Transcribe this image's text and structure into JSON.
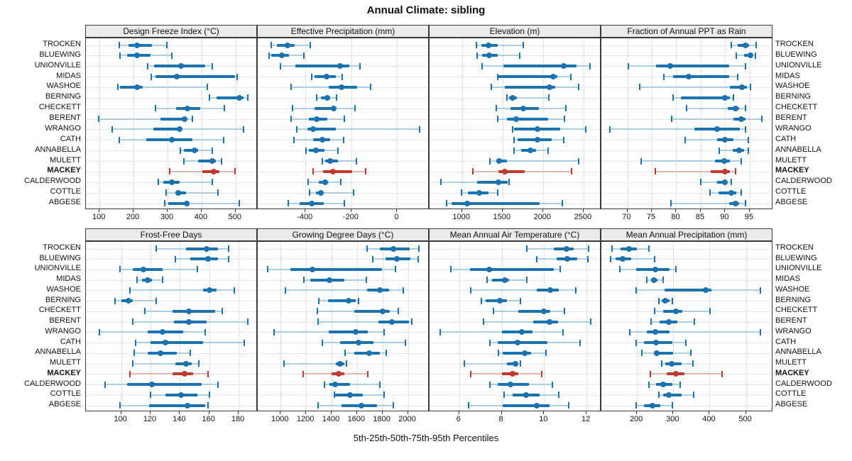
{
  "title": "Annual Climate: sibling",
  "xlabel": "5th-25th-50th-75th-95th Percentiles",
  "stations": [
    "TROCKEN",
    "BLUEWING",
    "UNIONVILLE",
    "MIDAS",
    "WASHOE",
    "BERNING",
    "CHECKETT",
    "BERENT",
    "WRANGO",
    "CATH",
    "ANNABELLA",
    "MULETT",
    "MACKEY",
    "CALDERWOOD",
    "COTTLE",
    "ABGESE"
  ],
  "highlight_station": "MACKEY",
  "percentiles": [
    5,
    25,
    50,
    75,
    95
  ],
  "colors": {
    "blue": "#1a72b0",
    "blue_light": "#9fc8e0",
    "red": "#c03a2f",
    "red_light": "#e4aea7",
    "grid": "#c9c9c9",
    "strip_bg": "#ebebeb",
    "border": "#3a3a3a"
  },
  "chart_data": [
    {
      "type": "dot-interval",
      "slug": "design-freeze-index",
      "row": 0,
      "col": 0,
      "title": "Design Freeze Index (°C)",
      "xticks": [
        100,
        200,
        300,
        400,
        500
      ],
      "xlim": [
        60,
        565
      ],
      "values": [
        [
          158,
          185,
          210,
          255,
          298
        ],
        [
          160,
          180,
          210,
          250,
          313
        ],
        [
          242,
          260,
          339,
          410,
          431
        ],
        [
          253,
          265,
          327,
          498,
          505
        ],
        [
          153,
          160,
          210,
          228,
          417
        ],
        [
          423,
          445,
          511,
          523,
          535
        ],
        [
          265,
          325,
          358,
          397,
          467
        ],
        [
          97,
          280,
          350,
          354,
          373
        ],
        [
          137,
          258,
          336,
          342,
          523
        ],
        [
          159,
          238,
          312,
          372,
          465
        ],
        [
          338,
          348,
          379,
          390,
          431
        ],
        [
          348,
          390,
          431,
          442,
          459
        ],
        [
          306,
          403,
          436,
          452,
          499
        ],
        [
          272,
          287,
          313,
          335,
          431
        ],
        [
          296,
          327,
          331,
          355,
          449
        ],
        [
          292,
          303,
          356,
          362,
          511
        ]
      ]
    },
    {
      "type": "dot-interval",
      "slug": "effective-precipitation",
      "row": 0,
      "col": 1,
      "title": "Effective Precipitation (mm)",
      "xticks": [
        -400,
        -200,
        0
      ],
      "xlim": [
        -608,
        141
      ],
      "values": [
        [
          -549,
          -523,
          -477,
          -446,
          -378
        ],
        [
          -557,
          -549,
          -503,
          -472,
          -407
        ],
        [
          -509,
          -444,
          -250,
          -210,
          -161
        ],
        [
          -374,
          -359,
          -307,
          -269,
          -239
        ],
        [
          -461,
          -298,
          -244,
          -174,
          -115
        ],
        [
          -352,
          -333,
          -304,
          -293,
          -264
        ],
        [
          -457,
          -360,
          -278,
          -272,
          -184
        ],
        [
          -461,
          -384,
          -350,
          -304,
          -231
        ],
        [
          -438,
          -392,
          -368,
          -267,
          98
        ],
        [
          -451,
          -368,
          -326,
          -293,
          -233
        ],
        [
          -397,
          -384,
          -353,
          -316,
          -257
        ],
        [
          -326,
          -314,
          -293,
          -257,
          -177
        ],
        [
          -368,
          -322,
          -281,
          -195,
          -138
        ],
        [
          -389,
          -343,
          -314,
          -302,
          -247
        ],
        [
          -381,
          -353,
          -331,
          -324,
          -190
        ],
        [
          -475,
          -425,
          -374,
          -321,
          -229
        ]
      ]
    },
    {
      "type": "dot-interval",
      "slug": "elevation",
      "row": 0,
      "col": 2,
      "title": "Elevation (m)",
      "xticks": [
        1000,
        1500,
        2000,
        2500
      ],
      "xlim": [
        600,
        2720
      ],
      "values": [
        [
          1175,
          1240,
          1330,
          1437,
          1758
        ],
        [
          1190,
          1248,
          1335,
          1437,
          1714
        ],
        [
          1248,
          1510,
          2254,
          2413,
          2580
        ],
        [
          1437,
          1452,
          2122,
          2181,
          2341
        ],
        [
          1364,
          1525,
          2084,
          2152,
          2443
        ],
        [
          1554,
          1583,
          1627,
          1677,
          2073
        ],
        [
          1423,
          1598,
          1758,
          1948,
          2283
        ],
        [
          1437,
          1554,
          1671,
          2060,
          2268
        ],
        [
          1627,
          1641,
          1933,
          2210,
          2531
        ],
        [
          1641,
          1685,
          1933,
          2108,
          2254
        ],
        [
          1641,
          1729,
          1840,
          1918,
          2064
        ],
        [
          1344,
          1423,
          1458,
          1554,
          2443
        ],
        [
          1131,
          1452,
          1531,
          1773,
          2356
        ],
        [
          743,
          1190,
          1452,
          1560,
          1583
        ],
        [
          994,
          1073,
          1210,
          1327,
          1443
        ],
        [
          810,
          869,
          1067,
          1956,
          2239
        ]
      ]
    },
    {
      "type": "dot-interval",
      "slug": "fraction-annual-ppt-as-rain",
      "row": 0,
      "col": 3,
      "title": "Fraction of Annual PPT as Rain",
      "xticks": [
        70,
        75,
        80,
        85,
        90,
        95
      ],
      "xlim": [
        64.7,
        99.8
      ],
      "values": [
        [
          91.2,
          92.5,
          94.1,
          94.9,
          96.3
        ],
        [
          92.2,
          93.9,
          95.1,
          95.6,
          96.2
        ],
        [
          70.2,
          75.9,
          78.8,
          90.8,
          94.2
        ],
        [
          77.5,
          79.3,
          82.5,
          90.8,
          92.5
        ],
        [
          72.5,
          91.0,
          93.4,
          94.4,
          95.2
        ],
        [
          79.4,
          80.9,
          90.0,
          91.0,
          91.7
        ],
        [
          82.1,
          90.5,
          92.1,
          92.8,
          94.1
        ],
        [
          79.1,
          91.7,
          93.3,
          94.2,
          97.5
        ],
        [
          66.5,
          83.7,
          88.4,
          93.0,
          94.1
        ],
        [
          81.8,
          88.3,
          89.9,
          91.7,
          94.7
        ],
        [
          88.8,
          91.5,
          92.9,
          93.9,
          94.7
        ],
        [
          72.8,
          87.9,
          89.8,
          91.0,
          93.3
        ],
        [
          75.7,
          87.1,
          90.0,
          91.0,
          92.1
        ],
        [
          85.0,
          88.4,
          89.9,
          90.4,
          91.3
        ],
        [
          86.9,
          88.6,
          91.2,
          92.2,
          93.3
        ],
        [
          78.9,
          90.8,
          92.1,
          92.9,
          94.1
        ]
      ]
    },
    {
      "type": "dot-interval",
      "slug": "frost-free-days",
      "row": 1,
      "col": 0,
      "title": "Frost-Free Days",
      "xticks": [
        100,
        120,
        140,
        160,
        180
      ],
      "xlim": [
        76,
        193
      ],
      "values": [
        [
          124,
          144,
          158,
          166,
          173
        ],
        [
          137,
          147,
          159,
          166,
          173
        ],
        [
          99,
          108,
          115,
          128,
          152
        ],
        [
          111,
          114,
          118,
          121,
          128
        ],
        [
          106,
          156,
          160,
          165,
          177
        ],
        [
          96,
          100,
          105,
          108,
          124
        ],
        [
          116,
          135,
          146,
          164,
          169
        ],
        [
          108,
          136,
          146,
          158,
          186
        ],
        [
          85,
          118,
          128,
          142,
          157
        ],
        [
          110,
          120,
          130,
          156,
          184
        ],
        [
          109,
          118,
          127,
          138,
          147
        ],
        [
          108,
          137,
          144,
          148,
          153
        ],
        [
          106,
          135,
          143,
          149,
          159
        ],
        [
          89,
          104,
          121,
          155,
          166
        ],
        [
          120,
          130,
          141,
          152,
          160
        ],
        [
          99,
          119,
          145,
          157,
          159
        ]
      ]
    },
    {
      "type": "dot-interval",
      "slug": "growing-degree-days",
      "row": 1,
      "col": 1,
      "title": "Growing Degree Days (°C)",
      "xticks": [
        1000,
        1200,
        1400,
        1600,
        1800,
        2000
      ],
      "xlim": [
        820,
        2170
      ],
      "values": [
        [
          1680,
          1777,
          1885,
          2015,
          2089
        ],
        [
          1724,
          1823,
          1916,
          2019,
          2078
        ],
        [
          898,
          1078,
          1251,
          1799,
          1903
        ],
        [
          1181,
          1233,
          1385,
          1501,
          1674
        ],
        [
          1035,
          1680,
          1777,
          1850,
          1963
        ],
        [
          1302,
          1371,
          1534,
          1590,
          1613
        ],
        [
          1289,
          1581,
          1801,
          1855,
          1926
        ],
        [
          1296,
          1767,
          1873,
          2009,
          2028
        ],
        [
          948,
          1376,
          1590,
          1687,
          1814
        ],
        [
          1330,
          1469,
          1613,
          1730,
          1978
        ],
        [
          1506,
          1581,
          1698,
          1777,
          1829
        ],
        [
          1028,
          1432,
          1469,
          1501,
          1516
        ],
        [
          1177,
          1400,
          1454,
          1501,
          1683
        ],
        [
          1344,
          1382,
          1428,
          1544,
          1777
        ],
        [
          1423,
          1426,
          1544,
          1646,
          1814
        ],
        [
          1292,
          1479,
          1637,
          1758,
          1888
        ]
      ]
    },
    {
      "type": "dot-interval",
      "slug": "mean-annual-air-temperature",
      "row": 1,
      "col": 2,
      "title": "Mean Annual Air Temperature (°C)",
      "xticks": [
        6,
        8,
        10,
        12
      ],
      "xlim": [
        4.6,
        12.7
      ],
      "values": [
        [
          9.2,
          10.45,
          11.05,
          11.4,
          12.1
        ],
        [
          9.65,
          10.6,
          11.1,
          11.55,
          12.05
        ],
        [
          5.6,
          6.5,
          7.4,
          10.45,
          10.75
        ],
        [
          7.3,
          7.55,
          8.15,
          8.35,
          9.2
        ],
        [
          6.55,
          9.65,
          10.3,
          10.7,
          11.5
        ],
        [
          7.05,
          7.25,
          7.9,
          8.25,
          8.9
        ],
        [
          7.6,
          8.8,
          10.0,
          10.3,
          10.95
        ],
        [
          7.15,
          9.5,
          10.25,
          10.65,
          12.2
        ],
        [
          5.1,
          8.0,
          8.95,
          9.45,
          10.9
        ],
        [
          7.45,
          7.8,
          8.75,
          10.15,
          11.7
        ],
        [
          7.85,
          8.05,
          9.1,
          9.4,
          10.1
        ],
        [
          6.25,
          8.25,
          8.65,
          8.8,
          8.9
        ],
        [
          6.55,
          8.0,
          8.5,
          8.8,
          9.9
        ],
        [
          7.45,
          7.8,
          8.4,
          9.3,
          10.4
        ],
        [
          8.1,
          8.5,
          9.15,
          9.8,
          10.7
        ],
        [
          6.45,
          8.05,
          9.65,
          10.25,
          11.15
        ]
      ]
    },
    {
      "type": "dot-interval",
      "slug": "mean-annual-precipitation",
      "row": 1,
      "col": 3,
      "title": "Mean Annual Precipitation (mm)",
      "xticks": [
        200,
        300,
        400,
        500
      ],
      "xlim": [
        102,
        575
      ],
      "values": [
        [
          132,
          154,
          178,
          200,
          233
        ],
        [
          127,
          141,
          161,
          184,
          248
        ],
        [
          152,
          197,
          251,
          290,
          308
        ],
        [
          228,
          239,
          246,
          257,
          272
        ],
        [
          197,
          276,
          390,
          405,
          540
        ],
        [
          261,
          269,
          278,
          289,
          298
        ],
        [
          248,
          272,
          307,
          324,
          401
        ],
        [
          239,
          263,
          287,
          311,
          359
        ],
        [
          180,
          228,
          250,
          289,
          540
        ],
        [
          197,
          220,
          252,
          298,
          335
        ],
        [
          213,
          246,
          254,
          300,
          348
        ],
        [
          269,
          278,
          295,
          322,
          354
        ],
        [
          237,
          282,
          307,
          331,
          434
        ],
        [
          233,
          252,
          272,
          298,
          318
        ],
        [
          261,
          272,
          287,
          322,
          357
        ],
        [
          197,
          220,
          243,
          265,
          298
        ]
      ]
    }
  ]
}
